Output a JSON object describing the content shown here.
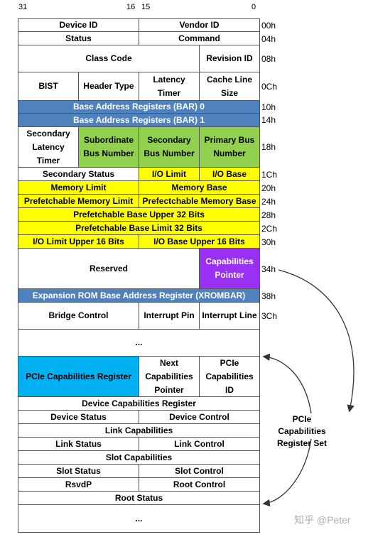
{
  "bit_labels": {
    "b31": "31",
    "b16": "16",
    "b15": "15",
    "b0": "0"
  },
  "header": {
    "device_id": "Device ID",
    "vendor_id": "Vendor ID",
    "status": "Status",
    "command": "Command",
    "class_code": "Class Code",
    "revision_id": "Revision ID",
    "bist": "BIST",
    "header_type": "Header Type",
    "latency_timer": "Latency Timer",
    "cache_line_size": "Cache Line Size",
    "bar0": "Base Address Registers (BAR) 0",
    "bar1": "Base Address Registers (BAR) 1",
    "secondary_latency_timer": "Secondary Latency Timer",
    "subordinate_bus_number": "Subordinate Bus Number",
    "secondary_bus_number": "Secondary Bus Number",
    "primary_bus_number": "Primary Bus Number",
    "secondary_status": "Secondary Status",
    "io_limit": "I/O Limit",
    "io_base": "I/O Base",
    "memory_limit": "Memory Limit",
    "memory_base": "Memory Base",
    "prefetchable_memory_limit": "Prefetchable Memory Limit",
    "prefetchable_memory_base": "Prefectchable Memory Base",
    "prefetchable_base_upper": "Prefetchable Base Upper 32 Bits",
    "prefetchable_limit_upper": "Prefetchable Base Limit 32 Bits",
    "io_limit_upper": "I/O Limit Upper 16 Bits",
    "io_base_upper": "I/O Base Upper 16 Bits",
    "reserved": "Reserved",
    "capabilities_pointer": "Capabilities Pointer",
    "expansion_rom": "Expansion ROM Base Address Register (XROMBAR)",
    "bridge_control": "Bridge Control",
    "interrupt_pin": "Interrupt Pin",
    "interrupt_line": "Interrupt Line",
    "ellipsis1": "..."
  },
  "pcie": {
    "capabilities_register": "PCIe Capabilities Register",
    "next_capabilities_pointer": "Next Capabilities Pointer",
    "capabilities_id": "PCIe Capabilities ID",
    "device_capabilities": "Device Capabilities Register",
    "device_status": "Device Status",
    "device_control": "Device Control",
    "link_capabilities": "Link Capabilities",
    "link_status": "Link Status",
    "link_control": "Link Control",
    "slot_capabilities": "Slot Capabilities",
    "slot_status": "Slot Status",
    "slot_control": "Slot Control",
    "rsvdp": "RsvdP",
    "root_control": "Root Control",
    "root_status": "Root Status",
    "ellipsis2": "..."
  },
  "offsets": {
    "o00": "00h",
    "o04": "04h",
    "o08": "08h",
    "o0c": "0Ch",
    "o10": "10h",
    "o14": "14h",
    "o18": "18h",
    "o1c": "1Ch",
    "o20": "20h",
    "o24": "24h",
    "o28": "28h",
    "o2c": "2Ch",
    "o30": "30h",
    "o34": "34h",
    "o38": "38h",
    "o3c": "3Ch"
  },
  "side_label": "PCIe Capabilities Register Set",
  "watermark": "知乎 @Peter",
  "colors": {
    "blue": "#4f81bd",
    "green": "#92d050",
    "yellow": "#ffff00",
    "purple": "#9b30f5",
    "cyan": "#00b0f0"
  }
}
